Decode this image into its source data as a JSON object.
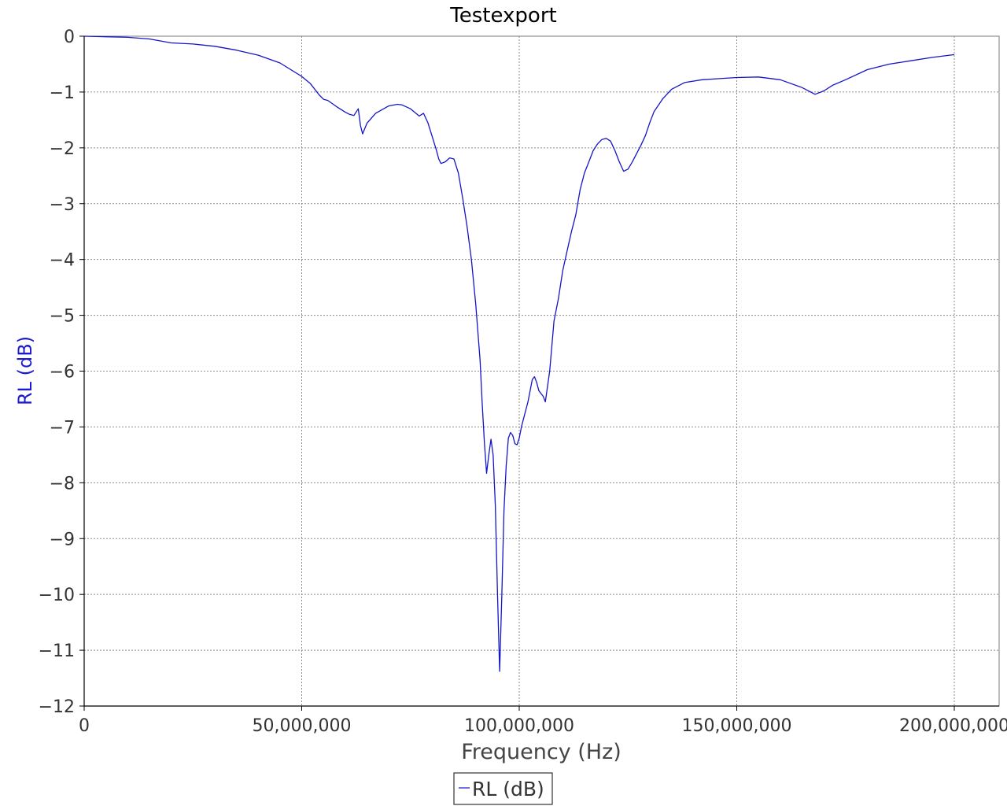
{
  "chart_data": {
    "type": "line",
    "title": "Testexport",
    "xlabel": "Frequency (Hz)",
    "ylabel": "RL (dB)",
    "xlim": [
      0,
      210000000
    ],
    "ylim": [
      -12,
      0
    ],
    "x_ticks": [
      0,
      50000000,
      100000000,
      150000000,
      200000000
    ],
    "x_tick_labels": [
      "0",
      "50,000,000",
      "100,000,000",
      "150,000,000",
      "200,000,000"
    ],
    "y_ticks": [
      0,
      -1,
      -2,
      -3,
      -4,
      -5,
      -6,
      -7,
      -8,
      -9,
      -10,
      -11,
      -12
    ],
    "y_tick_labels": [
      "0",
      "−1",
      "−2",
      "−3",
      "−4",
      "−5",
      "−6",
      "−7",
      "−8",
      "−9",
      "−10",
      "−11",
      "−12"
    ],
    "grid": true,
    "legend_position": "bottom-center",
    "colors": {
      "series": "#1515c8",
      "ylabel": "#1a1ad0",
      "grid": "#8a8a8a"
    },
    "series": [
      {
        "name": "RL (dB)",
        "x": [
          0,
          5000000,
          10000000,
          15000000,
          20000000,
          25000000,
          30000000,
          35000000,
          40000000,
          45000000,
          50000000,
          52000000,
          54000000,
          55000000,
          56000000,
          58000000,
          60000000,
          61000000,
          62000000,
          63000000,
          63500000,
          64000000,
          65000000,
          67000000,
          70000000,
          72000000,
          73000000,
          75000000,
          77000000,
          78000000,
          79000000,
          80000000,
          81000000,
          81500000,
          82000000,
          83000000,
          84000000,
          85000000,
          86000000,
          87000000,
          88000000,
          89000000,
          90000000,
          91000000,
          91500000,
          92000000,
          92500000,
          93000000,
          93500000,
          94000000,
          94500000,
          95000000,
          95500000,
          96000000,
          96500000,
          97000000,
          97500000,
          98000000,
          98500000,
          99000000,
          99500000,
          100000000,
          100500000,
          101000000,
          102000000,
          103000000,
          103500000,
          104000000,
          104500000,
          105000000,
          105500000,
          106000000,
          107000000,
          108000000,
          109000000,
          110000000,
          111000000,
          112000000,
          113000000,
          114000000,
          115000000,
          116000000,
          117000000,
          118000000,
          119000000,
          120000000,
          121000000,
          122000000,
          123000000,
          124000000,
          125000000,
          126000000,
          127000000,
          128000000,
          129000000,
          130000000,
          131000000,
          133000000,
          135000000,
          138000000,
          142000000,
          146000000,
          150000000,
          155000000,
          160000000,
          165000000,
          168000000,
          170000000,
          172000000,
          175000000,
          180000000,
          185000000,
          190000000,
          195000000,
          200000000
        ],
        "y": [
          0.0,
          -0.01,
          -0.02,
          -0.05,
          -0.12,
          -0.14,
          -0.18,
          -0.25,
          -0.34,
          -0.48,
          -0.72,
          -0.85,
          -1.05,
          -1.13,
          -1.15,
          -1.26,
          -1.36,
          -1.4,
          -1.42,
          -1.3,
          -1.6,
          -1.75,
          -1.56,
          -1.38,
          -1.25,
          -1.22,
          -1.23,
          -1.3,
          -1.43,
          -1.38,
          -1.55,
          -1.8,
          -2.05,
          -2.2,
          -2.28,
          -2.25,
          -2.18,
          -2.2,
          -2.45,
          -2.9,
          -3.4,
          -4.0,
          -4.8,
          -5.8,
          -6.6,
          -7.3,
          -7.83,
          -7.5,
          -7.22,
          -7.5,
          -8.4,
          -10.0,
          -11.38,
          -10.0,
          -8.5,
          -7.7,
          -7.2,
          -7.1,
          -7.15,
          -7.3,
          -7.32,
          -7.2,
          -7.0,
          -6.85,
          -6.55,
          -6.15,
          -6.1,
          -6.2,
          -6.35,
          -6.4,
          -6.45,
          -6.55,
          -6.0,
          -5.1,
          -4.7,
          -4.2,
          -3.85,
          -3.5,
          -3.2,
          -2.75,
          -2.45,
          -2.25,
          -2.05,
          -1.93,
          -1.85,
          -1.83,
          -1.88,
          -2.05,
          -2.25,
          -2.42,
          -2.38,
          -2.25,
          -2.1,
          -1.95,
          -1.78,
          -1.55,
          -1.35,
          -1.12,
          -0.95,
          -0.83,
          -0.78,
          -0.76,
          -0.74,
          -0.73,
          -0.78,
          -0.92,
          -1.04,
          -0.98,
          -0.88,
          -0.78,
          -0.6,
          -0.5,
          -0.44,
          -0.38,
          -0.33
        ]
      }
    ]
  }
}
